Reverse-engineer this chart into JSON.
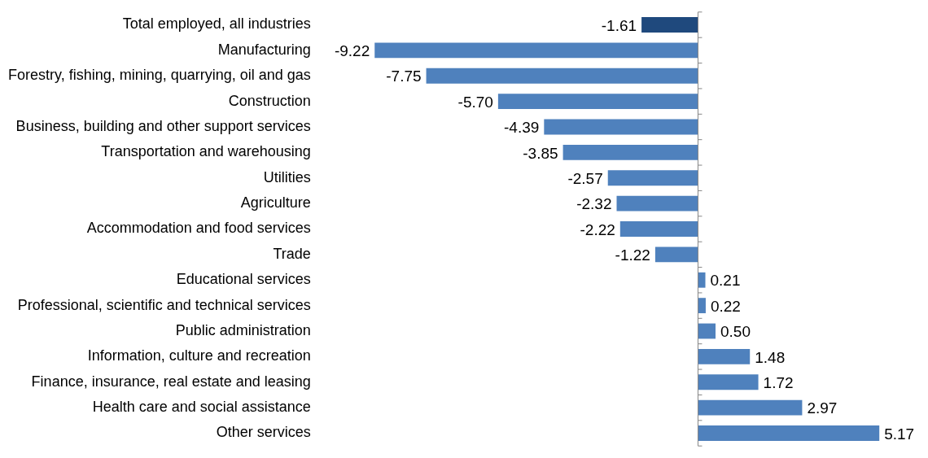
{
  "chart_data": {
    "type": "bar",
    "orientation": "horizontal",
    "categories": [
      "Total employed, all industries",
      "Manufacturing",
      "Forestry, fishing, mining, quarrying, oil and gas",
      "Construction",
      "Business, building and other support services",
      "Transportation and warehousing",
      "Utilities",
      "Agriculture",
      "Accommodation and food services",
      "Trade",
      "Educational services",
      "Professional, scientific and technical services",
      "Public administration",
      "Information, culture and recreation",
      "Finance, insurance, real estate and leasing",
      "Health care and social assistance",
      "Other services"
    ],
    "values": [
      -1.61,
      -9.22,
      -7.75,
      -5.7,
      -4.39,
      -3.85,
      -2.57,
      -2.32,
      -2.22,
      -1.22,
      0.21,
      0.22,
      0.5,
      1.48,
      1.72,
      2.97,
      5.17
    ],
    "value_labels": [
      "-1.61",
      "-9.22",
      "-7.75",
      "-5.70",
      "-4.39",
      "-3.85",
      "-2.57",
      "-2.32",
      "-2.22",
      "-1.22",
      "0.21",
      "0.22",
      "0.50",
      "1.48",
      "1.72",
      "2.97",
      "5.17"
    ],
    "colors": [
      "#1f497d",
      "#4f81bd",
      "#4f81bd",
      "#4f81bd",
      "#4f81bd",
      "#4f81bd",
      "#4f81bd",
      "#4f81bd",
      "#4f81bd",
      "#4f81bd",
      "#4f81bd",
      "#4f81bd",
      "#4f81bd",
      "#4f81bd",
      "#4f81bd",
      "#4f81bd",
      "#4f81bd"
    ]
  }
}
